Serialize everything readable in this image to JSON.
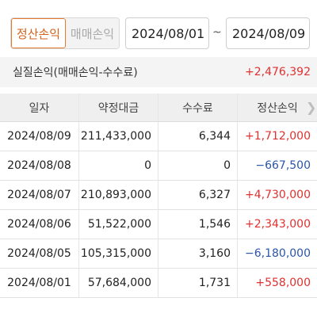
{
  "filters": {
    "tabs": [
      {
        "label": "정산손익",
        "active": true
      },
      {
        "label": "매매손익",
        "active": false
      }
    ],
    "date_from": "2024/08/01",
    "date_to": "2024/08/09",
    "separator": "~"
  },
  "summary": {
    "label": "실질손익(매매손익-수수료)",
    "value": "+2,476,392"
  },
  "table": {
    "columns": [
      "일자",
      "약정대금",
      "수수료",
      "정산손익"
    ],
    "rows": [
      {
        "date": "2024/08/09",
        "amount": "211,433,000",
        "fee": "6,344",
        "pnl": "+1,712,000",
        "sign": "pos"
      },
      {
        "date": "2024/08/08",
        "amount": "0",
        "fee": "0",
        "pnl": "−667,500",
        "sign": "neg"
      },
      {
        "date": "2024/08/07",
        "amount": "210,893,000",
        "fee": "6,327",
        "pnl": "+4,730,000",
        "sign": "pos"
      },
      {
        "date": "2024/08/06",
        "amount": "51,522,000",
        "fee": "1,546",
        "pnl": "+2,343,000",
        "sign": "pos"
      },
      {
        "date": "2024/08/05",
        "amount": "105,315,000",
        "fee": "3,160",
        "pnl": "−6,180,000",
        "sign": "neg"
      },
      {
        "date": "2024/08/01",
        "amount": "57,684,000",
        "fee": "1,731",
        "pnl": "+558,000",
        "sign": "pos"
      }
    ]
  },
  "colors": {
    "accent": "#e57a2e",
    "positive": "#e03030",
    "negative": "#2a55a8"
  }
}
